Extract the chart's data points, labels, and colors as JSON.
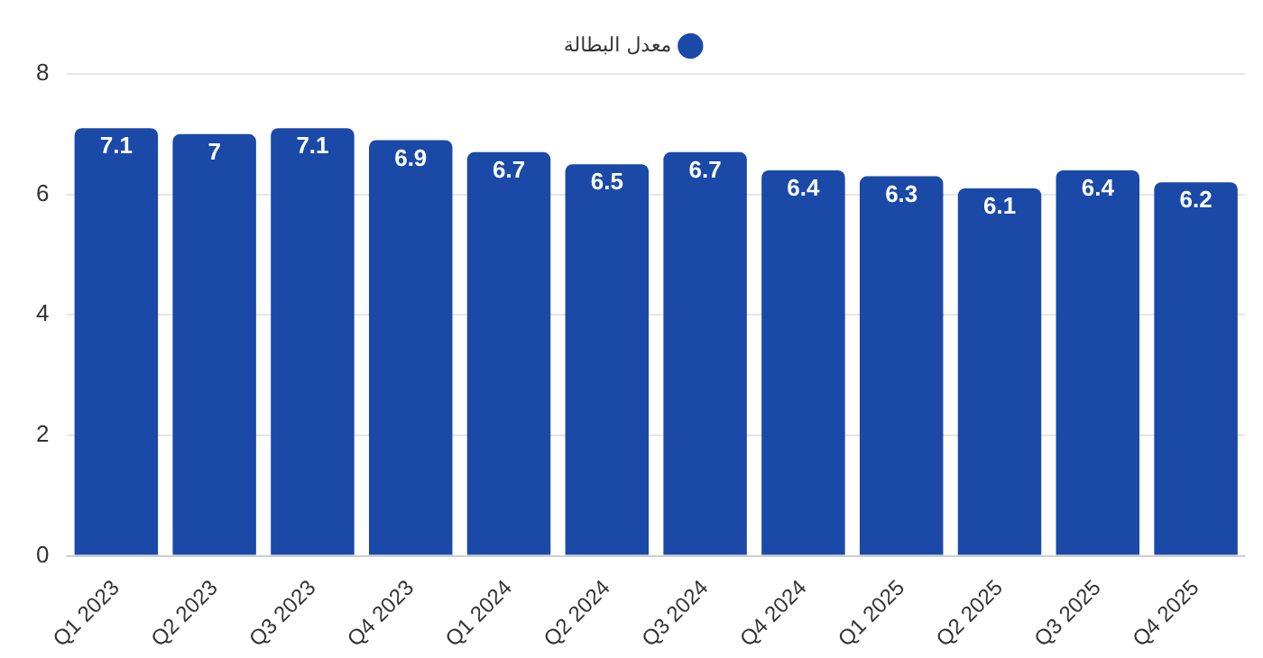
{
  "chart_data": {
    "type": "bar",
    "categories": [
      "Q1 2023",
      "Q2 2023",
      "Q3 2023",
      "Q4 2023",
      "Q1 2024",
      "Q2 2024",
      "Q3 2024",
      "Q4 2024",
      "Q1 2025",
      "Q2 2025",
      "Q3 2025",
      "Q4 2025"
    ],
    "series": [
      {
        "name": "معدل البطالة",
        "color": "#1a49a8",
        "values": [
          7.1,
          7,
          7.1,
          6.9,
          6.7,
          6.5,
          6.7,
          6.4,
          6.3,
          6.1,
          6.4,
          6.2
        ]
      }
    ],
    "ylim": [
      0,
      8
    ],
    "yticks": [
      0,
      2,
      4,
      6,
      8
    ],
    "grid": "y",
    "legend": "top",
    "data_labels": true
  }
}
